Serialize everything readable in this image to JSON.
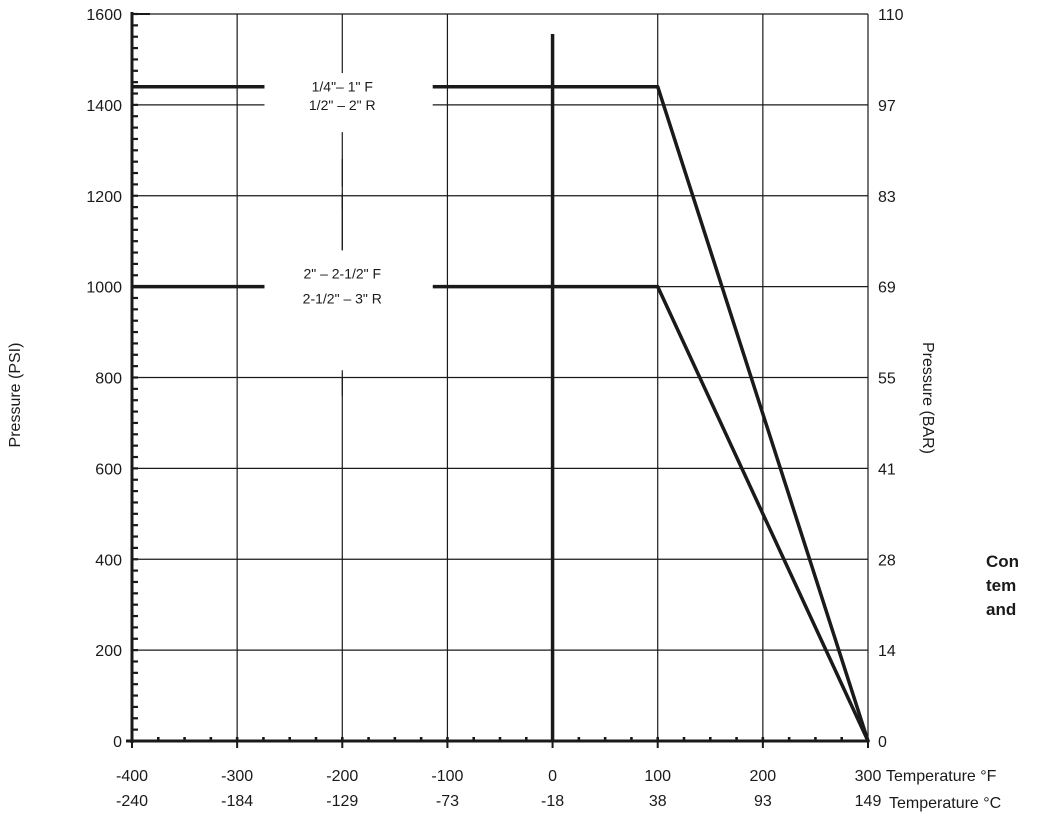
{
  "chart_data": {
    "type": "line",
    "ylabel": "Pressure (PSI)",
    "ylabel_right": "Pressure (BAR)",
    "x_axis_label_f": "Temperature °F",
    "x_axis_label_c": "Temperature °C",
    "xlim": [
      -400,
      300
    ],
    "ylim": [
      0,
      1600
    ],
    "x_ticks_f": [
      -400,
      -300,
      -200,
      -100,
      0,
      100,
      200,
      300
    ],
    "x_tick_labels_f": [
      "-400",
      "-300",
      "-200",
      "-100",
      "0",
      "100",
      "200",
      "300"
    ],
    "x_tick_labels_c": [
      "-240",
      "-184",
      "-129",
      "-73",
      "-18",
      "38",
      "93",
      "149"
    ],
    "y_ticks": [
      0,
      200,
      400,
      600,
      800,
      1000,
      1200,
      1400,
      1600
    ],
    "y_tick_labels": [
      "0",
      "200",
      "400",
      "600",
      "800",
      "1000",
      "1200",
      "1400",
      "1600"
    ],
    "y_tick_labels_right": [
      "0",
      "14",
      "28",
      "41",
      "55",
      "69",
      "83",
      "97",
      "110"
    ],
    "grid": true,
    "series": [
      {
        "label_lines": [
          "1/4\"– 1\" F",
          "1/2\" – 2\" R"
        ],
        "x": [
          -400,
          100,
          300
        ],
        "y": [
          1440,
          1440,
          0
        ]
      },
      {
        "label_lines": [
          "2\" – 2-1/2\" F",
          "2-1/2\" – 3\" R"
        ],
        "x": [
          -400,
          100,
          300
        ],
        "y": [
          1000,
          1000,
          0
        ]
      }
    ]
  },
  "side_note_lines": [
    "Con",
    "tem",
    "and"
  ]
}
